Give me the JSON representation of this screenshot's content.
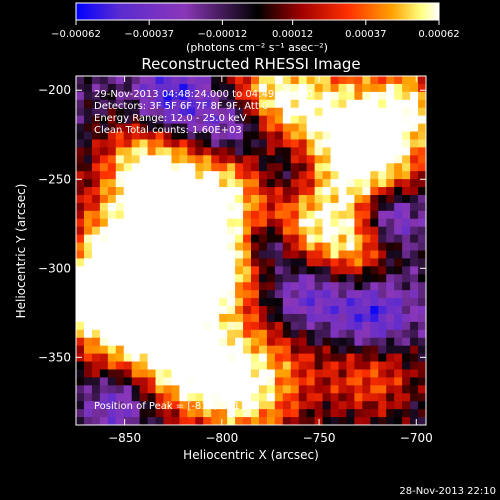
{
  "chart_data": {
    "type": "heatmap",
    "title": "Reconstructed RHESSI Image",
    "xlabel": "Heliocentric X (arcsec)",
    "ylabel": "Heliocentric Y (arcsec)",
    "xlim": [
      -875,
      -695
    ],
    "ylim": [
      -388,
      -192
    ],
    "x_ticks": [
      -850,
      -800,
      -750,
      -700
    ],
    "x_tick_labels": [
      "−850",
      "−800",
      "−750",
      "−700"
    ],
    "y_ticks": [
      -200,
      -250,
      -300,
      -350
    ],
    "y_tick_labels": [
      "−200",
      "−250",
      "−300",
      "−350"
    ],
    "colorbar": {
      "range": [
        -0.00062,
        0.00062
      ],
      "ticks": [
        -0.00062,
        -0.00037,
        -0.00012,
        0.00012,
        0.00037,
        0.00062
      ],
      "tick_labels": [
        "−0.00062",
        "−0.00037",
        "−0.00012",
        "0.00012",
        "0.00037",
        "0.00062"
      ],
      "unit_label": "(photons cm⁻² s⁻¹ asec⁻²)",
      "colors": [
        "#0000ff",
        "#5a2bd0",
        "#8a36b8",
        "#000000",
        "#a00000",
        "#ff3000",
        "#ffa000",
        "#ffff80",
        "#ffffff"
      ]
    },
    "annotations": [
      "29-Nov-2013 04:48:24.000 to 04:49:24.000",
      "Detectors: 3F 5F 6F 7F 8F 9F, Att 0",
      "Energy Range: 12.0 - 25.0 keV",
      "Clean    Total counts: 1.60E+03"
    ],
    "peak_label": "Position of Peak = [-818,-351]",
    "peak": [
      -818,
      -351
    ],
    "footer_timestamp": "28-Nov-2013 22:10"
  }
}
